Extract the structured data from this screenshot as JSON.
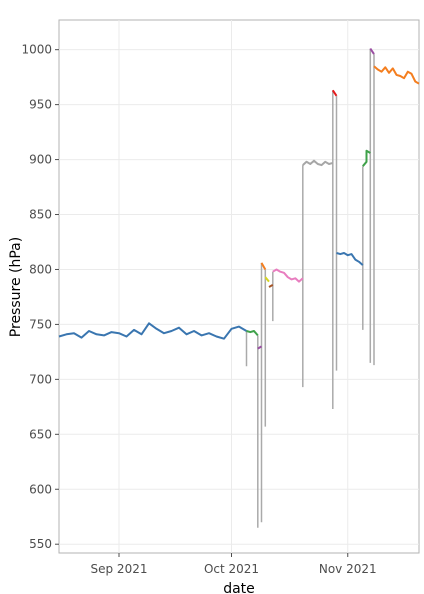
{
  "chart_data": {
    "type": "line",
    "xlabel": "date",
    "ylabel": "Pressure (hPa)",
    "x_start": "2021-08-16",
    "x_end": "2021-11-20",
    "ylim": [
      542,
      1027
    ],
    "x_ticks": [
      {
        "date": "2021-09-01",
        "label": "Sep 2021"
      },
      {
        "date": "2021-10-01",
        "label": "Oct 2021"
      },
      {
        "date": "2021-11-01",
        "label": "Nov 2021"
      }
    ],
    "y_ticks": [
      550,
      600,
      650,
      700,
      750,
      800,
      850,
      900,
      950,
      1000
    ],
    "grid": true,
    "connector_color": "#aaaaaa",
    "connectors": [
      {
        "x": [
          "2021-10-05",
          "2021-10-05",
          "2021-10-05"
        ],
        "y": [
          744,
          712,
          744
        ]
      },
      {
        "x": [
          "2021-10-08",
          "2021-10-08",
          "2021-10-08"
        ],
        "y": [
          740,
          565,
          728
        ]
      },
      {
        "x": [
          "2021-10-09",
          "2021-10-09",
          "2021-10-09"
        ],
        "y": [
          730,
          570,
          806
        ]
      },
      {
        "x": [
          "2021-10-10",
          "2021-10-10",
          "2021-10-10"
        ],
        "y": [
          800,
          657,
          793
        ]
      },
      {
        "x": [
          "2021-10-12",
          "2021-10-12",
          "2021-10-12"
        ],
        "y": [
          786,
          753,
          798
        ]
      },
      {
        "x": [
          "2021-10-20",
          "2021-10-20",
          "2021-10-20"
        ],
        "y": [
          792,
          693,
          895
        ]
      },
      {
        "x": [
          "2021-10-28",
          "2021-10-28",
          "2021-10-28"
        ],
        "y": [
          897,
          673,
          963
        ]
      },
      {
        "x": [
          "2021-10-29",
          "2021-10-29",
          "2021-10-29"
        ],
        "y": [
          958,
          708,
          815
        ]
      },
      {
        "x": [
          "2021-11-05",
          "2021-11-05",
          "2021-11-05"
        ],
        "y": [
          804,
          745,
          894
        ]
      },
      {
        "x": [
          "2021-11-07",
          "2021-11-07",
          "2021-11-07"
        ],
        "y": [
          906,
          715,
          1001
        ]
      },
      {
        "x": [
          "2021-11-08",
          "2021-11-08",
          "2021-11-08"
        ],
        "y": [
          996,
          713,
          985
        ]
      }
    ],
    "series": [
      {
        "color": "#3a76b0",
        "x": [
          "2021-08-16",
          "2021-08-18",
          "2021-08-20",
          "2021-08-22",
          "2021-08-24",
          "2021-08-26",
          "2021-08-28",
          "2021-08-30",
          "2021-09-01",
          "2021-09-03",
          "2021-09-05",
          "2021-09-07",
          "2021-09-09",
          "2021-09-11",
          "2021-09-13",
          "2021-09-15",
          "2021-09-17",
          "2021-09-19",
          "2021-09-21",
          "2021-09-23",
          "2021-09-25",
          "2021-09-27",
          "2021-09-29",
          "2021-10-01",
          "2021-10-03",
          "2021-10-05"
        ],
        "y": [
          739,
          741,
          742,
          738,
          744,
          741,
          740,
          743,
          742,
          739,
          745,
          741,
          751,
          746,
          742,
          744,
          747,
          741,
          744,
          740,
          742,
          739,
          737,
          746,
          748,
          744
        ]
      },
      {
        "color": "#3fa14a",
        "x": [
          "2021-10-05",
          "2021-10-06",
          "2021-10-07",
          "2021-10-08"
        ],
        "y": [
          744,
          743,
          744,
          740
        ]
      },
      {
        "color": "#9b4fa3",
        "x": [
          "2021-10-08",
          "2021-10-09"
        ],
        "y": [
          728,
          730
        ]
      },
      {
        "color": "#f47e1f",
        "x": [
          "2021-10-09",
          "2021-10-10"
        ],
        "y": [
          806,
          800
        ]
      },
      {
        "color": "#d4d420",
        "x": [
          "2021-10-10",
          "2021-10-11"
        ],
        "y": [
          793,
          789
        ]
      },
      {
        "color": "#a65628",
        "x": [
          "2021-10-11",
          "2021-10-12"
        ],
        "y": [
          784,
          786
        ]
      },
      {
        "color": "#e87dbf",
        "x": [
          "2021-10-12",
          "2021-10-13",
          "2021-10-14",
          "2021-10-15",
          "2021-10-16",
          "2021-10-17",
          "2021-10-18",
          "2021-10-19",
          "2021-10-20"
        ],
        "y": [
          798,
          800,
          798,
          797,
          793,
          791,
          792,
          789,
          792
        ]
      },
      {
        "color": "#a6a6a6",
        "x": [
          "2021-10-20",
          "2021-10-21",
          "2021-10-22",
          "2021-10-23",
          "2021-10-24",
          "2021-10-25",
          "2021-10-26",
          "2021-10-27",
          "2021-10-28"
        ],
        "y": [
          895,
          898,
          896,
          899,
          896,
          895,
          898,
          896,
          897
        ]
      },
      {
        "color": "#e41a1c",
        "x": [
          "2021-10-28",
          "2021-10-29"
        ],
        "y": [
          963,
          958
        ]
      },
      {
        "color": "#3a76b0",
        "x": [
          "2021-10-29",
          "2021-10-30",
          "2021-10-31",
          "2021-11-01",
          "2021-11-02",
          "2021-11-03",
          "2021-11-04",
          "2021-11-05"
        ],
        "y": [
          815,
          814,
          815,
          813,
          814,
          809,
          807,
          804
        ]
      },
      {
        "color": "#3fa14a",
        "x": [
          "2021-11-05",
          "2021-11-06",
          "2021-11-06",
          "2021-11-07"
        ],
        "y": [
          894,
          898,
          908,
          906
        ]
      },
      {
        "color": "#9b4fa3",
        "x": [
          "2021-11-07",
          "2021-11-08"
        ],
        "y": [
          1001,
          996
        ]
      },
      {
        "color": "#f47e1f",
        "x": [
          "2021-11-08",
          "2021-11-09",
          "2021-11-10",
          "2021-11-11",
          "2021-11-12",
          "2021-11-13",
          "2021-11-14",
          "2021-11-15",
          "2021-11-16",
          "2021-11-17",
          "2021-11-18",
          "2021-11-19",
          "2021-11-20"
        ],
        "y": [
          985,
          982,
          980,
          984,
          979,
          983,
          977,
          976,
          974,
          980,
          978,
          971,
          969
        ]
      }
    ]
  }
}
